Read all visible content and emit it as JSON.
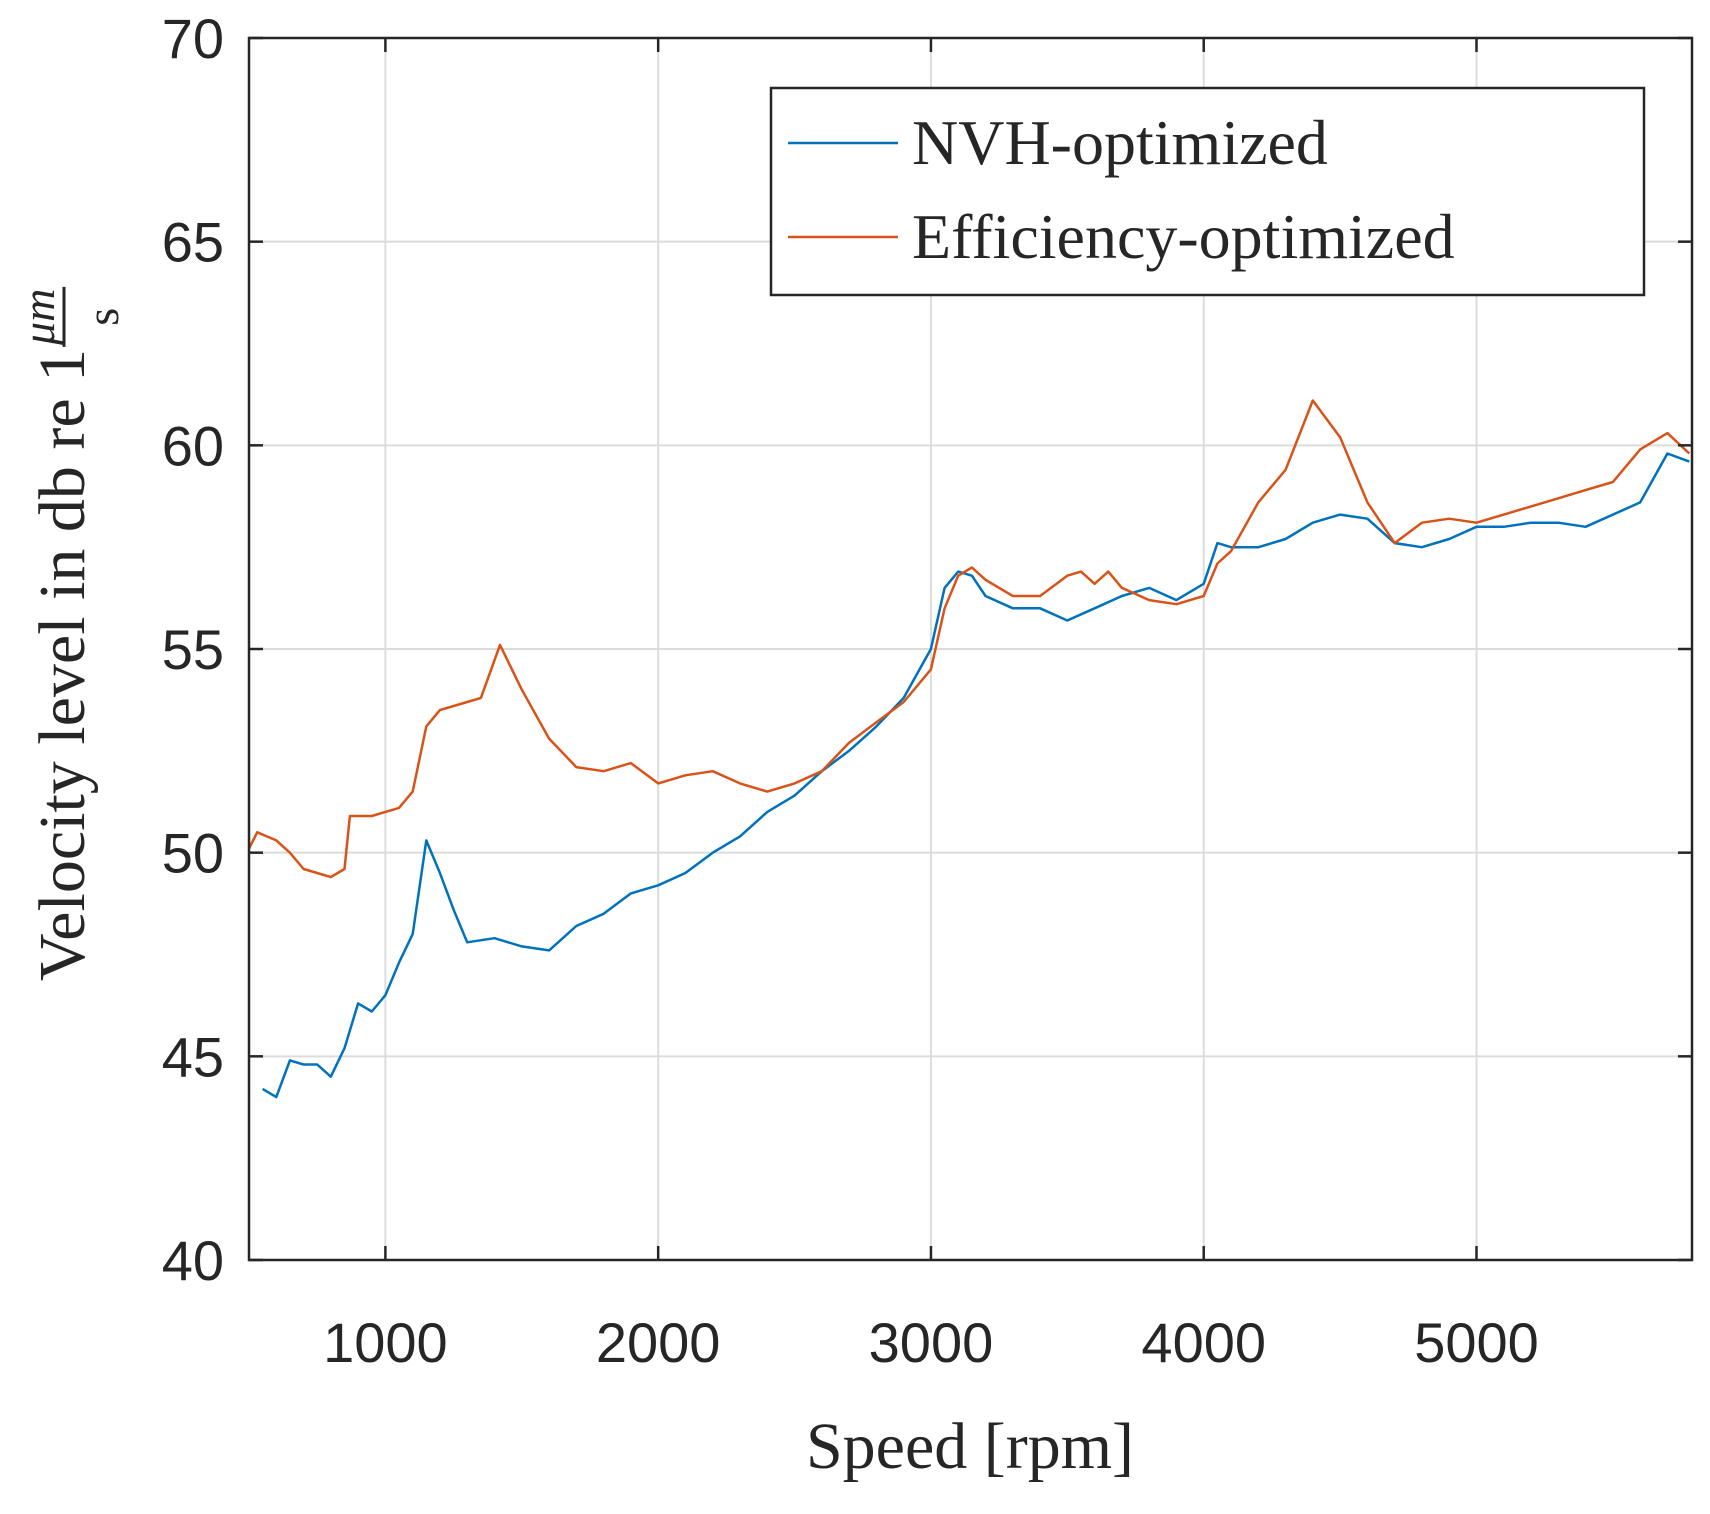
{
  "chart_data": {
    "type": "line",
    "xlabel": "Speed [rpm]",
    "ylabel": "Velocity level in db re 1",
    "ylabel_unit_numerator": "μm",
    "ylabel_unit_denominator": "s",
    "xlim": [
      500,
      5790
    ],
    "ylim": [
      40,
      70
    ],
    "xticks": [
      1000,
      2000,
      3000,
      4000,
      5000
    ],
    "yticks": [
      40,
      45,
      50,
      55,
      60,
      65,
      70
    ],
    "grid": true,
    "legend": "northeast",
    "series": [
      {
        "name": "NVH-optimized",
        "color": "#0072bd",
        "x": [
          550,
          600,
          650,
          700,
          750,
          800,
          850,
          900,
          950,
          1000,
          1050,
          1100,
          1150,
          1200,
          1250,
          1300,
          1400,
          1500,
          1600,
          1700,
          1800,
          1900,
          2000,
          2100,
          2200,
          2300,
          2400,
          2500,
          2600,
          2700,
          2800,
          2900,
          3000,
          3050,
          3100,
          3150,
          3200,
          3300,
          3400,
          3500,
          3600,
          3700,
          3800,
          3900,
          4000,
          4050,
          4100,
          4200,
          4300,
          4400,
          4500,
          4600,
          4700,
          4800,
          4900,
          5000,
          5100,
          5200,
          5300,
          5400,
          5500,
          5600,
          5700,
          5780
        ],
        "values": [
          44.2,
          44.0,
          44.9,
          44.8,
          44.8,
          44.5,
          45.2,
          46.3,
          46.1,
          46.5,
          47.3,
          48.0,
          50.3,
          49.5,
          48.6,
          47.8,
          47.9,
          47.7,
          47.6,
          48.2,
          48.5,
          49.0,
          49.2,
          49.5,
          50.0,
          50.4,
          51.0,
          51.4,
          52.0,
          52.5,
          53.1,
          53.8,
          55.0,
          56.5,
          56.9,
          56.8,
          56.3,
          56.0,
          56.0,
          55.7,
          56.0,
          56.3,
          56.5,
          56.2,
          56.6,
          57.6,
          57.5,
          57.5,
          57.7,
          58.1,
          58.3,
          58.2,
          57.6,
          57.5,
          57.7,
          58.0,
          58.0,
          58.1,
          58.1,
          58.0,
          58.3,
          58.6,
          59.8,
          59.6
        ]
      },
      {
        "name": "Efficiency-optimized",
        "color": "#d95319",
        "x": [
          500,
          530,
          600,
          650,
          700,
          750,
          800,
          850,
          870,
          950,
          1000,
          1050,
          1100,
          1150,
          1200,
          1300,
          1350,
          1420,
          1500,
          1600,
          1700,
          1800,
          1900,
          2000,
          2100,
          2200,
          2300,
          2400,
          2500,
          2600,
          2700,
          2800,
          2900,
          3000,
          3050,
          3100,
          3150,
          3200,
          3300,
          3400,
          3500,
          3550,
          3600,
          3650,
          3700,
          3800,
          3900,
          4000,
          4050,
          4100,
          4200,
          4300,
          4400,
          4500,
          4600,
          4700,
          4800,
          4900,
          5000,
          5100,
          5200,
          5300,
          5400,
          5500,
          5600,
          5700,
          5780
        ],
        "values": [
          50.1,
          50.5,
          50.3,
          50.0,
          49.6,
          49.5,
          49.4,
          49.6,
          50.9,
          50.9,
          51.0,
          51.1,
          51.5,
          53.1,
          53.5,
          53.7,
          53.8,
          55.1,
          54.0,
          52.8,
          52.1,
          52.0,
          52.2,
          51.7,
          51.9,
          52.0,
          51.7,
          51.5,
          51.7,
          52.0,
          52.7,
          53.2,
          53.7,
          54.5,
          56.0,
          56.8,
          57.0,
          56.7,
          56.3,
          56.3,
          56.8,
          56.9,
          56.6,
          56.9,
          56.5,
          56.2,
          56.1,
          56.3,
          57.1,
          57.4,
          58.6,
          59.4,
          61.1,
          60.2,
          58.6,
          57.6,
          58.1,
          58.2,
          58.1,
          58.3,
          58.5,
          58.7,
          58.9,
          59.1,
          59.9,
          60.3,
          59.8
        ]
      }
    ]
  }
}
